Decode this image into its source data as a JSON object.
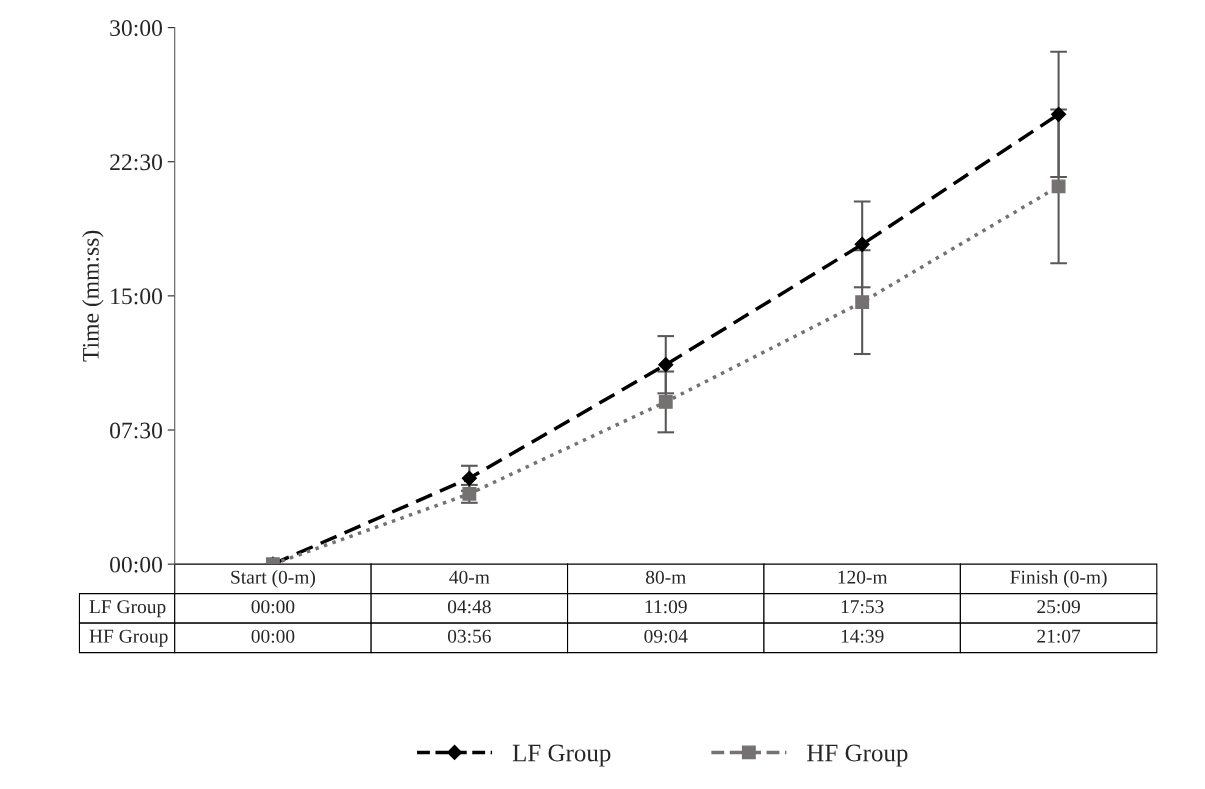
{
  "chart_data": {
    "type": "line",
    "ylabel": "Time (mm:ss)",
    "categories": [
      "Start (0-m)",
      "40-m",
      "80-m",
      "120-m",
      "Finish (0-m)"
    ],
    "series": [
      {
        "name": "LF Group",
        "color": "#000000",
        "marker": "diamond",
        "line_style": "dashed",
        "values": [
          0,
          4.8,
          11.15,
          17.88,
          25.15
        ],
        "errors": [
          null,
          0.7,
          1.6,
          2.4,
          3.5
        ],
        "value_labels": [
          "00:00",
          "04:48",
          "11:09",
          "17:53",
          "25:09"
        ]
      },
      {
        "name": "HF Group",
        "color": "#767171",
        "marker": "square",
        "line_style": "dotted",
        "values": [
          0,
          3.93,
          9.07,
          14.65,
          21.12
        ],
        "errors": [
          null,
          0.5,
          1.7,
          2.9,
          4.3
        ],
        "value_labels": [
          "00:00",
          "03:56",
          "09:04",
          "14:39",
          "21:07"
        ]
      }
    ],
    "ylim": [
      0,
      30
    ],
    "yticks": [
      {
        "value": 0,
        "label": "00:00"
      },
      {
        "value": 7.5,
        "label": "07:30"
      },
      {
        "value": 15,
        "label": "15:00"
      },
      {
        "value": 22.5,
        "label": "22:30"
      },
      {
        "value": 30,
        "label": "30:00"
      }
    ],
    "grid": false,
    "legend": "bottom"
  }
}
